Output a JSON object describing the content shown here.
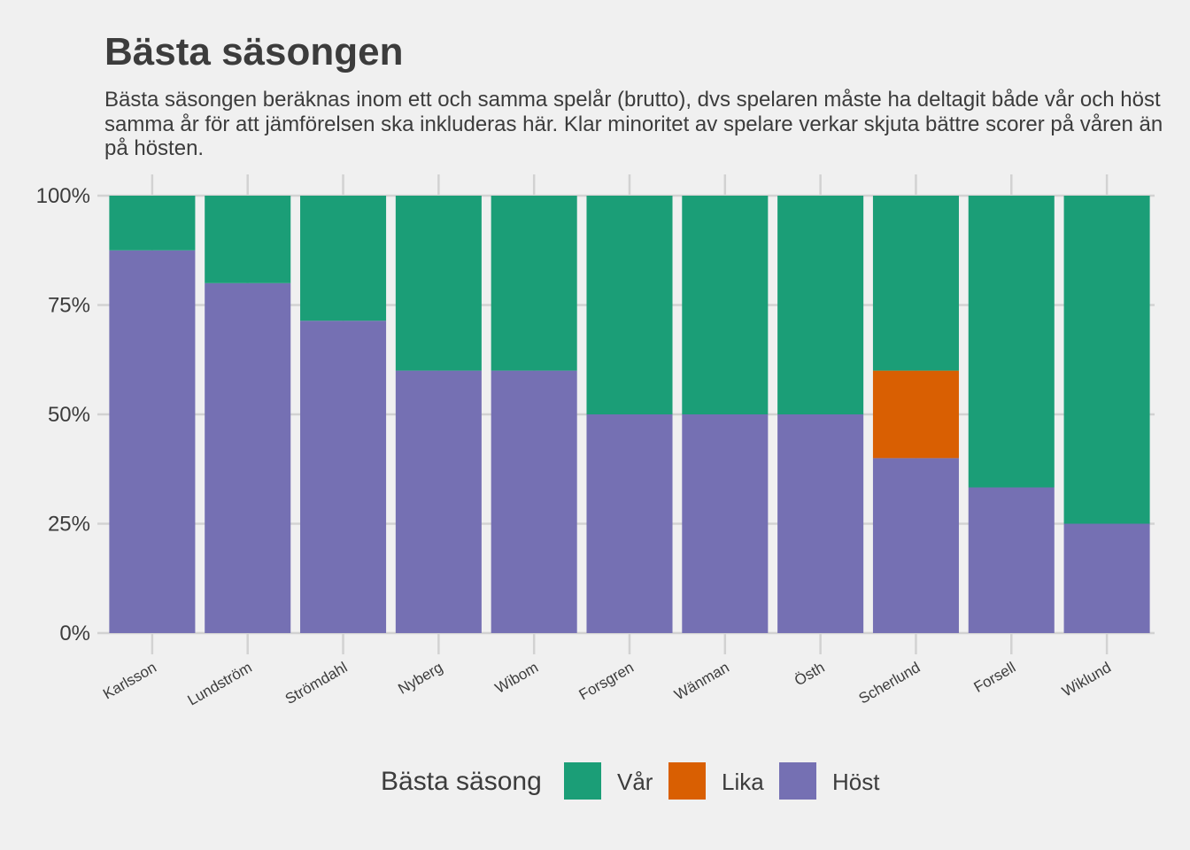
{
  "title": "Bästa säsongen",
  "subtitle": "Bästa säsongen beräknas inom ett och samma spelår (brutto), dvs spelaren måste ha deltagit både vår och höst samma år för att jämförelsen ska inkluderas här. Klar minoritet av spelare verkar skjuta bättre scorer på våren än på hösten.",
  "colors": {
    "var": "#1b9e77",
    "lika": "#d95f02",
    "host": "#7570b3",
    "background": "#f0f0f0",
    "grid": "#d2d2d2",
    "text": "#3c3c3c"
  },
  "legend": {
    "title": "Bästa säsong",
    "items": [
      {
        "label": "Vår",
        "color_key": "var"
      },
      {
        "label": "Lika",
        "color_key": "lika"
      },
      {
        "label": "Höst",
        "color_key": "host"
      }
    ]
  },
  "chart_data": {
    "type": "bar",
    "stacked": true,
    "percent": true,
    "title": "Bästa säsongen",
    "xlabel": "",
    "ylabel": "",
    "ylim": [
      0,
      1
    ],
    "yticks": [
      0,
      0.25,
      0.5,
      0.75,
      1
    ],
    "ytick_labels": [
      "0%",
      "25%",
      "50%",
      "75%",
      "100%"
    ],
    "grid": true,
    "legend_position": "bottom",
    "categories": [
      "Karlsson",
      "Lundström",
      "Strömdahl",
      "Nyberg",
      "Wibom",
      "Forsgren",
      "Wänman",
      "Östh",
      "Scherlund",
      "Forsell",
      "Wiklund"
    ],
    "series": [
      {
        "name": "Höst",
        "color_key": "host",
        "values": [
          0.875,
          0.8,
          0.714,
          0.6,
          0.6,
          0.5,
          0.5,
          0.5,
          0.4,
          0.333,
          0.25
        ]
      },
      {
        "name": "Lika",
        "color_key": "lika",
        "values": [
          0,
          0,
          0,
          0,
          0,
          0,
          0,
          0,
          0.2,
          0,
          0
        ]
      },
      {
        "name": "Vår",
        "color_key": "var",
        "values": [
          0.125,
          0.2,
          0.286,
          0.4,
          0.4,
          0.5,
          0.5,
          0.5,
          0.4,
          0.667,
          0.75
        ]
      }
    ]
  }
}
